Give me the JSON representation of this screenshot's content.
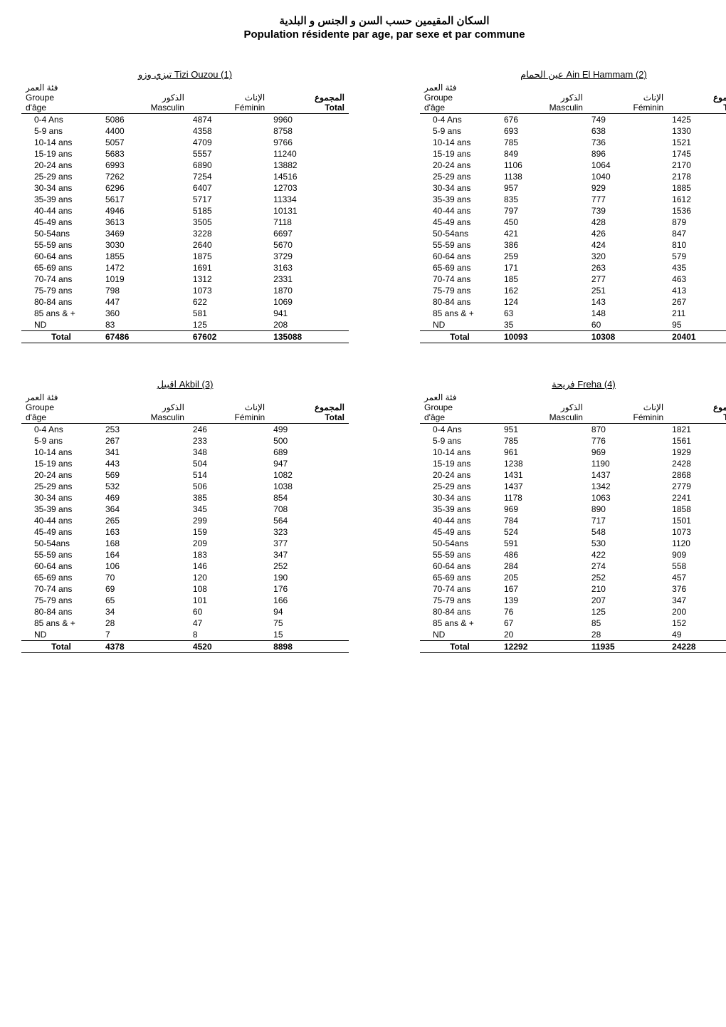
{
  "title": {
    "ar": "السكان المقيمين حسب السن و الجنس و البلدية",
    "fr": "Population résidente par age, par sexe et par commune"
  },
  "headers": {
    "group_ar": "فئة العمر",
    "group_fr1": "Groupe",
    "group_fr2": "d'âge",
    "masc_ar": "الذكور",
    "masc_fr": "Masculin",
    "fem_ar": "الإناث",
    "fem_fr": "Féminin",
    "total_ar": "المجموع",
    "total_fr": "Total",
    "total_label": "Total"
  },
  "age_groups": [
    "0-4 Ans",
    "5-9 ans",
    "10-14 ans",
    "15-19 ans",
    "20-24 ans",
    "25-29 ans",
    "30-34 ans",
    "35-39 ans",
    "40-44 ans",
    "45-49 ans",
    "50-54ans",
    "55-59 ans",
    "60-64 ans",
    "65-69 ans",
    "70-74 ans",
    "75-79 ans",
    "80-84 ans",
    "85 ans &  +",
    "ND"
  ],
  "communes": [
    {
      "title": "تيزي وزو Tizi Ouzou (1)",
      "data": {
        "m": [
          5086,
          4400,
          5057,
          5683,
          6993,
          7262,
          6296,
          5617,
          4946,
          3613,
          3469,
          3030,
          1855,
          1472,
          1019,
          798,
          447,
          360,
          83
        ],
        "f": [
          4874,
          4358,
          4709,
          5557,
          6890,
          7254,
          6407,
          5717,
          5185,
          3505,
          3228,
          2640,
          1875,
          1691,
          1312,
          1073,
          622,
          581,
          125
        ],
        "t": [
          9960,
          8758,
          9766,
          11240,
          13882,
          14516,
          12703,
          11334,
          10131,
          7118,
          6697,
          5670,
          3729,
          3163,
          2331,
          1870,
          1069,
          941,
          208
        ]
      },
      "totals": {
        "m": 67486,
        "f": 67602,
        "t": 135088
      }
    },
    {
      "title": "عين الحمام  Ain El Hammam (2)",
      "data": {
        "m": [
          676,
          693,
          785,
          849,
          1106,
          1138,
          957,
          835,
          797,
          450,
          421,
          386,
          259,
          171,
          185,
          162,
          124,
          63,
          35
        ],
        "f": [
          749,
          638,
          736,
          896,
          1064,
          1040,
          929,
          777,
          739,
          428,
          426,
          424,
          320,
          263,
          277,
          251,
          143,
          148,
          60
        ],
        "t": [
          1425,
          1330,
          1521,
          1745,
          2170,
          2178,
          1885,
          1612,
          1536,
          879,
          847,
          810,
          579,
          435,
          463,
          413,
          267,
          211,
          95
        ]
      },
      "totals": {
        "m": 10093,
        "f": 10308,
        "t": 20401
      }
    },
    {
      "title": "اقبيل  Akbil (3)",
      "data": {
        "m": [
          253,
          267,
          341,
          443,
          569,
          532,
          469,
          364,
          265,
          163,
          168,
          164,
          106,
          70,
          69,
          65,
          34,
          28,
          7
        ],
        "f": [
          246,
          233,
          348,
          504,
          514,
          506,
          385,
          345,
          299,
          159,
          209,
          183,
          146,
          120,
          108,
          101,
          60,
          47,
          8
        ],
        "t": [
          499,
          500,
          689,
          947,
          1082,
          1038,
          854,
          708,
          564,
          323,
          377,
          347,
          252,
          190,
          176,
          166,
          94,
          75,
          15
        ]
      },
      "totals": {
        "m": 4378,
        "f": 4520,
        "t": 8898
      }
    },
    {
      "title": "فريحة  Freha (4)",
      "data": {
        "m": [
          951,
          785,
          961,
          1238,
          1431,
          1437,
          1178,
          969,
          784,
          524,
          591,
          486,
          284,
          205,
          167,
          139,
          76,
          67,
          20
        ],
        "f": [
          870,
          776,
          969,
          1190,
          1437,
          1342,
          1063,
          890,
          717,
          548,
          530,
          422,
          274,
          252,
          210,
          207,
          125,
          85,
          28
        ],
        "t": [
          1821,
          1561,
          1929,
          2428,
          2868,
          2779,
          2241,
          1858,
          1501,
          1073,
          1120,
          909,
          558,
          457,
          376,
          347,
          200,
          152,
          49
        ]
      },
      "totals": {
        "m": 12292,
        "f": 11935,
        "t": 24228
      }
    }
  ]
}
